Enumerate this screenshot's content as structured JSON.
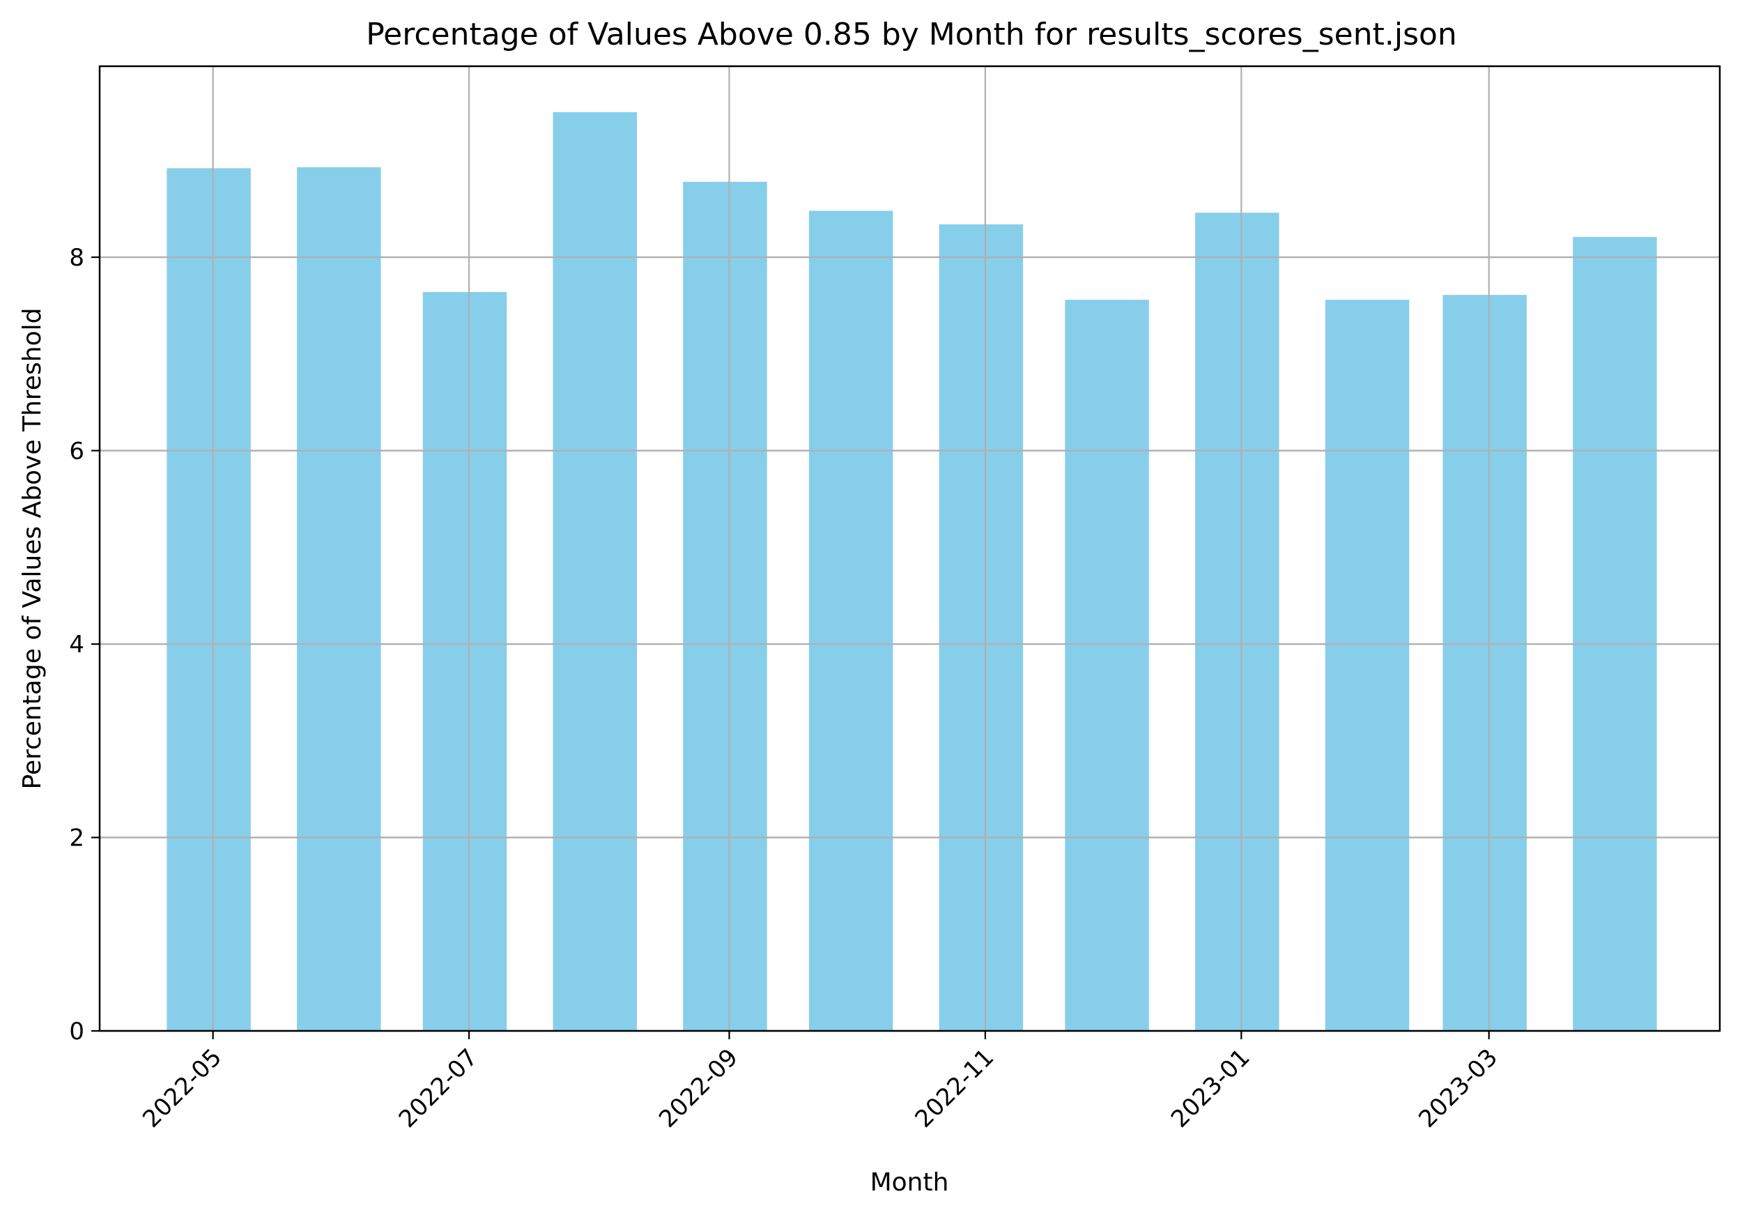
{
  "chart_data": {
    "type": "bar",
    "title": "Percentage of Values Above 0.85 by Month for results_scores_sent.json",
    "xlabel": "Month",
    "ylabel": "Percentage of Values Above Threshold",
    "categories": [
      "2022-04-30",
      "2022-05-31",
      "2022-06-30",
      "2022-07-31",
      "2022-08-31",
      "2022-09-30",
      "2022-10-31",
      "2022-11-30",
      "2022-12-31",
      "2023-01-31",
      "2023-02-28",
      "2023-03-31"
    ],
    "values": [
      8.92,
      8.93,
      7.64,
      9.5,
      8.78,
      8.48,
      8.34,
      7.56,
      8.46,
      7.56,
      7.61,
      8.21
    ],
    "bar_color": "#87CEEB",
    "x_ticks": [
      "2022-05-01",
      "2022-07-01",
      "2022-09-01",
      "2022-11-01",
      "2023-01-01",
      "2023-03-01"
    ],
    "x_tick_labels": [
      "2022-05",
      "2022-07",
      "2022-09",
      "2022-11",
      "2023-01",
      "2023-03"
    ],
    "xlim": [
      "2022-04-04",
      "2023-04-25"
    ],
    "y_ticks": [
      0,
      2,
      4,
      6,
      8
    ],
    "ylim": [
      0,
      9.975
    ],
    "grid": true,
    "legend": "none"
  }
}
